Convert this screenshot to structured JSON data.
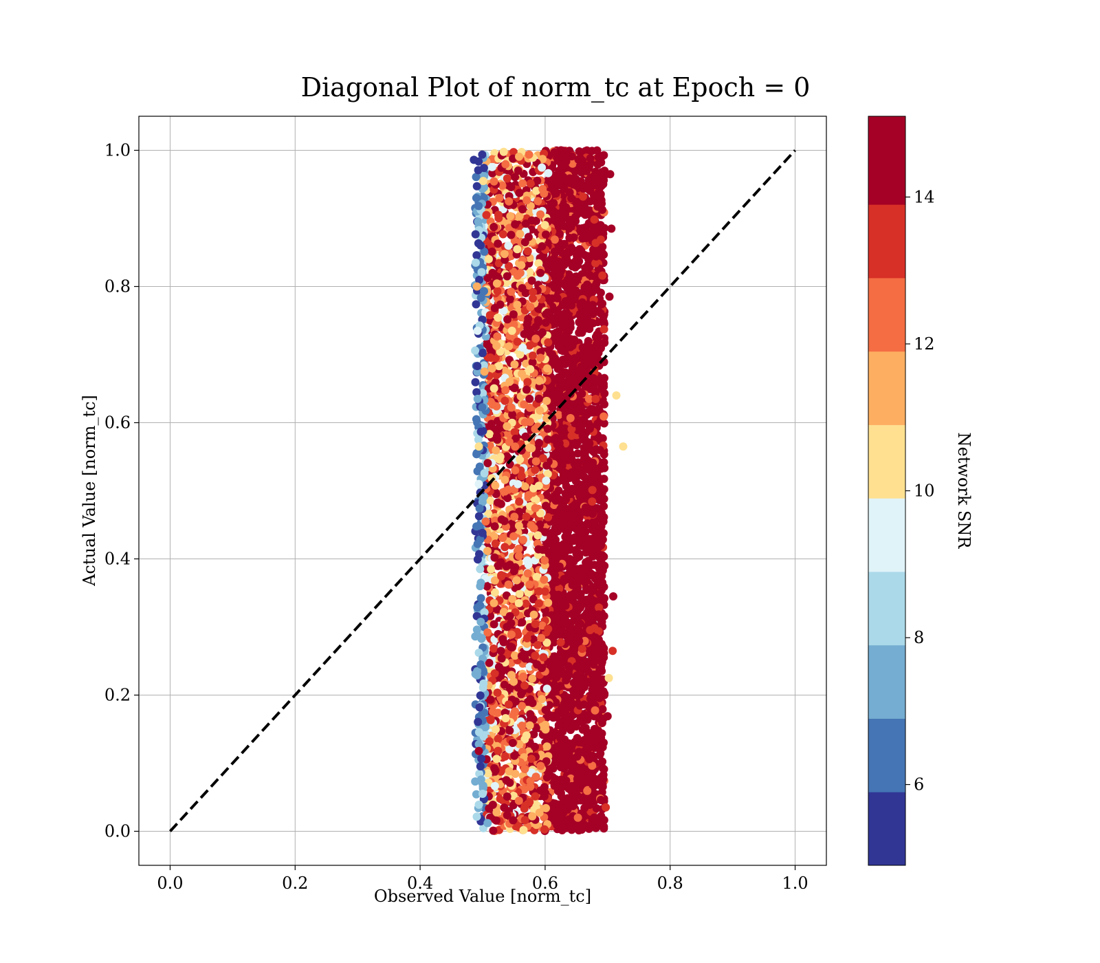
{
  "chart_data": {
    "type": "scatter",
    "title": "Diagonal Plot of norm_tc at Epoch = 0",
    "xlabel": "Observed Value [norm_tc]",
    "ylabel": "Actual Value [norm_tc]",
    "xlim": [
      -0.05,
      1.05
    ],
    "ylim": [
      -0.05,
      1.05
    ],
    "xticks": [
      {
        "value": 0.0,
        "label": "0.0"
      },
      {
        "value": 0.2,
        "label": "0.2"
      },
      {
        "value": 0.4,
        "label": "0.4"
      },
      {
        "value": 0.6,
        "label": "0.6"
      },
      {
        "value": 0.8,
        "label": "0.8"
      },
      {
        "value": 1.0,
        "label": "1.0"
      }
    ],
    "yticks": [
      {
        "value": 0.0,
        "label": "0.0"
      },
      {
        "value": 0.2,
        "label": "0.2"
      },
      {
        "value": 0.4,
        "label": "0.4"
      },
      {
        "value": 0.6,
        "label": "0.6"
      },
      {
        "value": 0.8,
        "label": "0.8"
      },
      {
        "value": 1.0,
        "label": "1.0"
      }
    ],
    "grid": true,
    "diagonal": {
      "x": [
        0.0,
        1.0
      ],
      "y": [
        0.0,
        1.0
      ],
      "style": "dashed",
      "color": "#000000"
    },
    "scatter_summary": {
      "observed_range": [
        0.48,
        0.72
      ],
      "actual_range": [
        0.0,
        1.0
      ],
      "low_snr_region_x": [
        0.48,
        0.6
      ],
      "high_snr_region_x": [
        0.6,
        0.7
      ]
    },
    "points": [
      [
        0.486,
        0.986,
        5.5
      ],
      [
        0.49,
        0.93,
        6.5
      ],
      [
        0.489,
        0.835,
        8.5
      ],
      [
        0.488,
        0.706,
        8.5
      ],
      [
        0.492,
        0.635,
        7.5
      ],
      [
        0.49,
        0.605,
        6.5
      ],
      [
        0.494,
        0.565,
        10.5
      ],
      [
        0.494,
        0.51,
        9.5
      ],
      [
        0.492,
        0.422,
        6.5
      ],
      [
        0.496,
        0.36,
        7.5
      ],
      [
        0.497,
        0.245,
        6.5
      ],
      [
        0.495,
        0.182,
        5.5
      ],
      [
        0.494,
        0.118,
        14.5
      ],
      [
        0.5,
        0.055,
        8.5
      ],
      [
        0.508,
        0.012,
        7.5
      ],
      [
        0.491,
        0.8,
        11.5
      ],
      [
        0.492,
        0.735,
        9.5
      ],
      [
        0.501,
        0.955,
        10.5
      ],
      [
        0.506,
        0.905,
        13.5
      ],
      [
        0.503,
        0.675,
        11.5
      ],
      [
        0.505,
        0.455,
        12.5
      ],
      [
        0.508,
        0.292,
        12.5
      ],
      [
        0.511,
        0.132,
        13.5
      ],
      [
        0.516,
        0.82,
        14.5
      ],
      [
        0.523,
        0.58,
        14.5
      ],
      [
        0.529,
        0.395,
        14.5
      ],
      [
        0.535,
        0.215,
        14.5
      ],
      [
        0.538,
        0.075,
        14.5
      ],
      [
        0.542,
        0.925,
        12.5
      ],
      [
        0.547,
        0.735,
        10.5
      ],
      [
        0.552,
        0.53,
        12.5
      ],
      [
        0.558,
        0.335,
        10.5
      ],
      [
        0.563,
        0.155,
        12.5
      ],
      [
        0.568,
        0.865,
        14.5
      ],
      [
        0.575,
        0.635,
        14.5
      ],
      [
        0.582,
        0.445,
        12.5
      ],
      [
        0.587,
        0.245,
        14.5
      ],
      [
        0.593,
        0.06,
        14.5
      ],
      [
        0.725,
        0.565,
        10.5
      ],
      [
        0.714,
        0.64,
        10.5
      ],
      [
        0.708,
        0.265,
        13.5
      ],
      [
        0.702,
        0.225,
        10.5
      ],
      [
        0.7,
        0.169,
        14.5
      ],
      [
        0.697,
        0.035,
        13.5
      ],
      [
        0.706,
        0.885,
        14.5
      ],
      [
        0.703,
        0.785,
        14.5
      ],
      [
        0.709,
        0.345,
        14.5
      ],
      [
        0.704,
        0.965,
        14.5
      ]
    ],
    "colorbar": {
      "label": "Network SNR",
      "range": [
        4.9,
        15.1
      ],
      "ticks": [
        {
          "value": 6,
          "label": "6"
        },
        {
          "value": 8,
          "label": "8"
        },
        {
          "value": 10,
          "label": "10"
        },
        {
          "value": 12,
          "label": "12"
        },
        {
          "value": 14,
          "label": "14"
        }
      ],
      "bins": [
        {
          "from": 4.9,
          "to": 5.9,
          "color": "#313695"
        },
        {
          "from": 5.9,
          "to": 6.9,
          "color": "#4575b4"
        },
        {
          "from": 6.9,
          "to": 7.9,
          "color": "#74add1"
        },
        {
          "from": 7.9,
          "to": 8.9,
          "color": "#abd9e9"
        },
        {
          "from": 8.9,
          "to": 9.9,
          "color": "#e0f3f8"
        },
        {
          "from": 9.9,
          "to": 10.9,
          "color": "#fee090"
        },
        {
          "from": 10.9,
          "to": 11.9,
          "color": "#fdae61"
        },
        {
          "from": 11.9,
          "to": 12.9,
          "color": "#f46d43"
        },
        {
          "from": 12.9,
          "to": 13.9,
          "color": "#d73027"
        },
        {
          "from": 13.9,
          "to": 15.1,
          "color": "#a50026"
        }
      ]
    }
  }
}
